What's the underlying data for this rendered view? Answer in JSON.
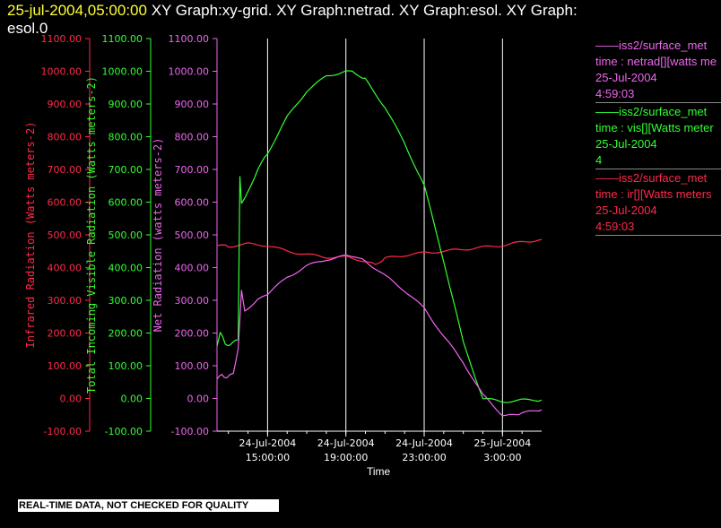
{
  "header": {
    "timestamp": "25-jul-2004,05:00:00",
    "title_rest": "  XY Graph:xy-grid.  XY Graph:netrad.  XY Graph:esol.  XY Graph:",
    "title_line2": "esol.0"
  },
  "footer": {
    "qc_notice": "REAL-TIME DATA, NOT CHECKED FOR QUALITY"
  },
  "colors": {
    "ir": "#ff2a4a",
    "vis": "#33ff33",
    "net": "#ee66ee",
    "axis_x": "#ffffff",
    "grid": "#ffffff",
    "background": "#000000"
  },
  "legend": [
    {
      "source": "iss2/surface_met",
      "variable": "time : netrad[][watts me",
      "date": "25-Jul-2004",
      "time": "4:59:03",
      "color": "#ee66ee"
    },
    {
      "source": "iss2/surface_met",
      "variable": "time : vis[][Watts meter",
      "date": "25-Jul-2004",
      "time": "4",
      "color": "#33ff33"
    },
    {
      "source": "iss2/surface_met",
      "variable": "time : ir[][Watts meters",
      "date": "25-Jul-2004",
      "time": "4:59:03",
      "color": "#ff2a4a"
    }
  ],
  "chart_data": {
    "type": "line",
    "xlabel": "Time",
    "x_ticks": [
      {
        "date": "24-Jul-2004",
        "time": "15:00:00"
      },
      {
        "date": "24-Jul-2004",
        "time": "19:00:00"
      },
      {
        "date": "24-Jul-2004",
        "time": "23:00:00"
      },
      {
        "date": "25-Jul-2004",
        "time": "3:00:00"
      }
    ],
    "xlim": [
      "2004-07-24 12:25",
      "2004-07-25 05:00"
    ],
    "grid": "vertical at major x ticks",
    "y_axes": [
      {
        "label": "Infrared Radiation (Watts meters-2)",
        "color": "#ff2a4a",
        "ylim": [
          -100,
          1100
        ],
        "ticks": [
          "-100.00",
          "0.00",
          "100.00",
          "200.00",
          "300.00",
          "400.00",
          "500.00",
          "600.00",
          "700.00",
          "800.00",
          "900.00",
          "1000.00",
          "1100.00"
        ]
      },
      {
        "label": "Total Incoming Visible Radiation (Watts meters-2)",
        "color": "#33ff33",
        "ylim": [
          -100,
          1100
        ],
        "ticks": [
          "-100.00",
          "0.00",
          "100.00",
          "200.00",
          "300.00",
          "400.00",
          "500.00",
          "600.00",
          "700.00",
          "800.00",
          "900.00",
          "1000.00",
          "1100.00"
        ]
      },
      {
        "label": "Net Radiation (watts meters-2)",
        "color": "#ee66ee",
        "ylim": [
          -100,
          1100
        ],
        "ticks": [
          "-100.00",
          "0.00",
          "100.00",
          "200.00",
          "300.00",
          "400.00",
          "500.00",
          "600.00",
          "700.00",
          "800.00",
          "900.00",
          "1000.00",
          "1100.00"
        ]
      }
    ],
    "series": [
      {
        "color": "#ff2a4a",
        "x": [
          "2004-07-24 12:25",
          "2004-07-24 13:00",
          "2004-07-24 14:00",
          "2004-07-24 15:00",
          "2004-07-24 16:00",
          "2004-07-24 17:00",
          "2004-07-24 18:00",
          "2004-07-24 19:00",
          "2004-07-24 20:00",
          "2004-07-24 20:30",
          "2004-07-24 21:00",
          "2004-07-24 22:00",
          "2004-07-24 23:00",
          "2004-07-25 00:00",
          "2004-07-25 01:00",
          "2004-07-25 02:00",
          "2004-07-25 03:00",
          "2004-07-25 04:00",
          "2004-07-25 05:00"
        ],
        "y": [
          467,
          465,
          472,
          468,
          450,
          440,
          432,
          432,
          420,
          410,
          428,
          438,
          445,
          450,
          456,
          462,
          468,
          478,
          486
        ]
      },
      {
        "color": "#33ff33",
        "x": [
          "2004-07-24 12:25",
          "2004-07-24 12:35",
          "2004-07-24 12:50",
          "2004-07-24 13:05",
          "2004-07-24 13:15",
          "2004-07-24 13:30",
          "2004-07-24 13:35",
          "2004-07-24 13:40",
          "2004-07-24 13:50",
          "2004-07-24 14:30",
          "2004-07-24 15:00",
          "2004-07-24 16:00",
          "2004-07-24 17:00",
          "2004-07-24 18:00",
          "2004-07-24 19:00",
          "2004-07-24 19:30",
          "2004-07-24 20:00",
          "2004-07-24 21:00",
          "2004-07-24 22:00",
          "2004-07-24 23:00",
          "2004-07-25 00:00",
          "2004-07-25 01:00",
          "2004-07-25 02:00",
          "2004-07-25 03:00",
          "2004-07-25 04:00",
          "2004-07-25 05:00"
        ],
        "y": [
          160,
          200,
          170,
          160,
          175,
          180,
          675,
          600,
          610,
          700,
          750,
          860,
          940,
          985,
          1000,
          995,
          975,
          890,
          780,
          650,
          420,
          170,
          0,
          -10,
          -5,
          -5
        ]
      },
      {
        "color": "#ee66ee",
        "x": [
          "2004-07-24 12:25",
          "2004-07-24 12:40",
          "2004-07-24 12:55",
          "2004-07-24 13:15",
          "2004-07-24 13:30",
          "2004-07-24 13:40",
          "2004-07-24 13:50",
          "2004-07-24 14:30",
          "2004-07-24 15:00",
          "2004-07-24 16:00",
          "2004-07-24 17:00",
          "2004-07-24 18:00",
          "2004-07-24 19:00",
          "2004-07-24 19:30",
          "2004-07-24 20:00",
          "2004-07-24 21:00",
          "2004-07-24 22:00",
          "2004-07-24 23:00",
          "2004-07-25 00:00",
          "2004-07-25 01:00",
          "2004-07-25 02:00",
          "2004-07-25 03:00",
          "2004-07-25 03:30",
          "2004-07-25 04:00",
          "2004-07-25 05:00"
        ],
        "y": [
          60,
          75,
          60,
          80,
          150,
          330,
          270,
          300,
          320,
          370,
          405,
          425,
          435,
          433,
          420,
          375,
          330,
          275,
          190,
          110,
          10,
          -50,
          -50,
          -45,
          -35
        ]
      }
    ]
  }
}
